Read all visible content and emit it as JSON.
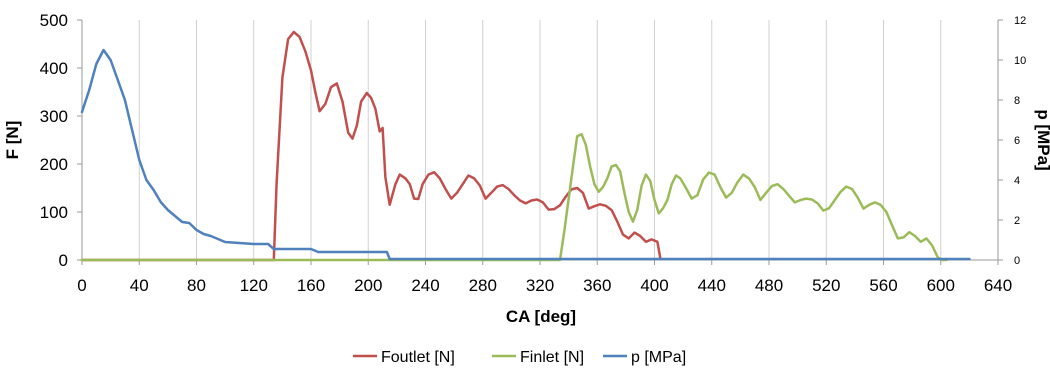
{
  "chart_data": {
    "type": "line",
    "xlabel": "CA [deg]",
    "ylabel": "F [N]",
    "y2label": "p [MPa]",
    "xlim": [
      0,
      640
    ],
    "ylim": [
      0,
      500
    ],
    "y2lim": [
      0,
      12
    ],
    "xticks": [
      0,
      40,
      80,
      120,
      160,
      200,
      240,
      280,
      320,
      360,
      400,
      440,
      480,
      520,
      560,
      600,
      640
    ],
    "yticks": [
      0,
      100,
      200,
      300,
      400,
      500
    ],
    "y2ticks": [
      0,
      2,
      4,
      6,
      8,
      10,
      12
    ],
    "grid": "vertical",
    "legend_position": "bottom",
    "series": [
      {
        "name": "Foutlet [N]",
        "color": "#c0504d",
        "axis": "left",
        "x": [
          0,
          134,
          136,
          140,
          144,
          148,
          152,
          156,
          160,
          163,
          166,
          170,
          174,
          178,
          182,
          186,
          189,
          192,
          195,
          199,
          202,
          205,
          208,
          210,
          212,
          215,
          219,
          222,
          226,
          229,
          232,
          235,
          238,
          242,
          246,
          250,
          254,
          258,
          262,
          266,
          270,
          274,
          278,
          282,
          286,
          290,
          294,
          298,
          302,
          306,
          310,
          314,
          318,
          322,
          326,
          330,
          334,
          338,
          342,
          346,
          350,
          354,
          358,
          362,
          366,
          370,
          374,
          378,
          382,
          386,
          390,
          394,
          398,
          402,
          404
        ],
        "y": [
          0,
          0,
          160,
          380,
          460,
          475,
          465,
          435,
          395,
          350,
          310,
          325,
          360,
          368,
          330,
          265,
          253,
          280,
          330,
          348,
          338,
          315,
          268,
          275,
          172,
          115,
          158,
          178,
          170,
          158,
          128,
          127,
          158,
          178,
          183,
          170,
          148,
          128,
          140,
          158,
          176,
          170,
          155,
          128,
          140,
          153,
          156,
          148,
          135,
          124,
          118,
          124,
          126,
          120,
          105,
          106,
          114,
          132,
          147,
          150,
          140,
          107,
          112,
          116,
          113,
          104,
          80,
          53,
          45,
          57,
          50,
          38,
          43,
          38,
          5
        ]
      },
      {
        "name": "Finlet [N]",
        "color": "#9bbb59",
        "axis": "left",
        "x": [
          0,
          334,
          337,
          341,
          344,
          346,
          349,
          352,
          355,
          358,
          361,
          364,
          367,
          370,
          373,
          376,
          379,
          382,
          385,
          388,
          391,
          394,
          397,
          400,
          403,
          406,
          409,
          412,
          415,
          418,
          422,
          426,
          430,
          434,
          438,
          442,
          446,
          450,
          454,
          458,
          462,
          466,
          470,
          474,
          478,
          482,
          486,
          490,
          494,
          498,
          502,
          506,
          510,
          514,
          518,
          522,
          526,
          530,
          534,
          538,
          542,
          546,
          550,
          554,
          558,
          562,
          566,
          570,
          574,
          578,
          582,
          586,
          590,
          594,
          598,
          601,
          604
        ],
        "y": [
          0,
          0,
          60,
          150,
          215,
          258,
          262,
          240,
          195,
          158,
          142,
          152,
          170,
          195,
          198,
          185,
          140,
          100,
          80,
          105,
          155,
          178,
          165,
          125,
          97,
          108,
          125,
          158,
          176,
          170,
          150,
          128,
          135,
          168,
          182,
          178,
          152,
          130,
          140,
          162,
          178,
          170,
          152,
          125,
          140,
          154,
          158,
          148,
          134,
          120,
          125,
          128,
          126,
          118,
          103,
          108,
          125,
          142,
          153,
          148,
          130,
          107,
          115,
          120,
          115,
          100,
          72,
          45,
          47,
          58,
          50,
          38,
          45,
          30,
          5,
          0,
          0
        ]
      },
      {
        "name": "p [MPa]",
        "color": "#4f81bd",
        "axis": "right",
        "x": [
          0,
          5,
          10,
          15,
          20,
          25,
          30,
          35,
          40,
          45,
          50,
          55,
          60,
          65,
          70,
          75,
          80,
          85,
          90,
          95,
          100,
          110,
          120,
          125,
          130,
          134,
          140,
          150,
          160,
          165,
          170,
          180,
          200,
          213,
          215,
          230,
          300,
          400,
          500,
          600,
          620
        ],
        "y": [
          7.4,
          8.5,
          9.8,
          10.5,
          10,
          9,
          8,
          6.5,
          5,
          4,
          3.5,
          2.9,
          2.5,
          2.2,
          1.9,
          1.85,
          1.5,
          1.3,
          1.2,
          1.05,
          0.9,
          0.85,
          0.8,
          0.8,
          0.8,
          0.55,
          0.55,
          0.55,
          0.55,
          0.4,
          0.4,
          0.4,
          0.4,
          0.4,
          0.05,
          0.05,
          0.05,
          0.05,
          0.05,
          0.05,
          0.05
        ]
      }
    ]
  }
}
